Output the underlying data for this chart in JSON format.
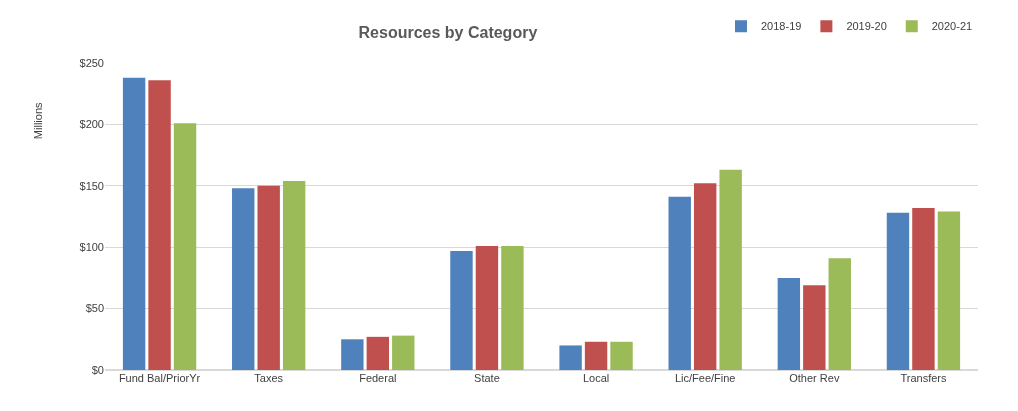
{
  "chart_data": {
    "type": "bar",
    "title": "Resources by Category",
    "ylabel": "Millions",
    "categories": [
      "Fund Bal/PriorYr",
      "Taxes",
      "Federal",
      "State",
      "Local",
      "Lic/Fee/Fine",
      "Other Rev",
      "Transfers"
    ],
    "series": [
      {
        "name": "2018-19",
        "color": "#4f81bd",
        "values": [
          238,
          148,
          25,
          97,
          20,
          141,
          75,
          128
        ]
      },
      {
        "name": "2019-20",
        "color": "#c0504d",
        "values": [
          236,
          150,
          27,
          101,
          23,
          152,
          69,
          132
        ]
      },
      {
        "name": "2020-21",
        "color": "#9bbb59",
        "values": [
          201,
          154,
          28,
          101,
          23,
          163,
          91,
          129
        ]
      }
    ],
    "ylim": [
      0,
      250
    ],
    "yticks": [
      {
        "value": 0,
        "label": "$0"
      },
      {
        "value": 50,
        "label": "$50"
      },
      {
        "value": 100,
        "label": "$100"
      },
      {
        "value": 150,
        "label": "$150"
      },
      {
        "value": 200,
        "label": "$200"
      },
      {
        "value": 250,
        "label": "$250"
      }
    ],
    "grid": "y",
    "legend": "top right"
  }
}
